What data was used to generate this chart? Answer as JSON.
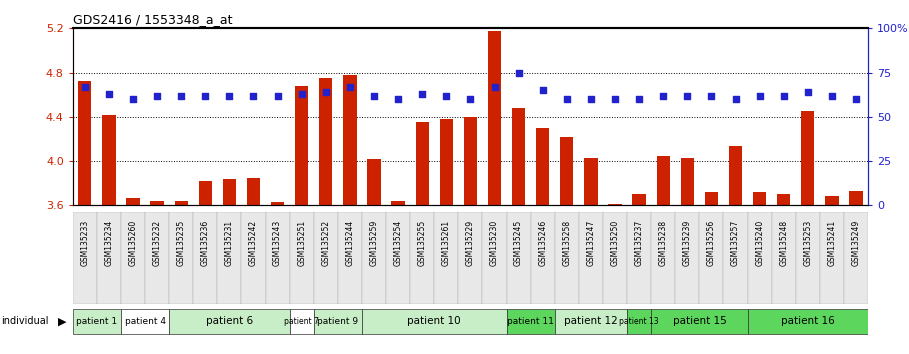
{
  "title": "GDS2416 / 1553348_a_at",
  "samples": [
    "GSM135233",
    "GSM135234",
    "GSM135260",
    "GSM135232",
    "GSM135235",
    "GSM135236",
    "GSM135231",
    "GSM135242",
    "GSM135243",
    "GSM135251",
    "GSM135252",
    "GSM135244",
    "GSM135259",
    "GSM135254",
    "GSM135255",
    "GSM135261",
    "GSM135229",
    "GSM135230",
    "GSM135245",
    "GSM135246",
    "GSM135258",
    "GSM135247",
    "GSM135250",
    "GSM135237",
    "GSM135238",
    "GSM135239",
    "GSM135256",
    "GSM135257",
    "GSM135240",
    "GSM135248",
    "GSM135253",
    "GSM135241",
    "GSM135249"
  ],
  "bar_values": [
    4.72,
    4.42,
    3.67,
    3.64,
    3.64,
    3.82,
    3.84,
    3.85,
    3.63,
    4.68,
    4.75,
    4.78,
    4.02,
    3.64,
    4.35,
    4.38,
    4.4,
    5.18,
    4.48,
    4.3,
    4.22,
    4.03,
    3.61,
    3.7,
    4.05,
    4.03,
    3.72,
    4.14,
    3.72,
    3.7,
    4.45,
    3.68,
    3.73
  ],
  "dot_values": [
    67,
    63,
    60,
    62,
    62,
    62,
    62,
    62,
    62,
    63,
    64,
    67,
    62,
    60,
    63,
    62,
    60,
    67,
    75,
    65,
    60,
    60,
    60,
    60,
    62,
    62,
    62,
    60,
    62,
    62,
    64,
    62,
    60
  ],
  "patients": [
    {
      "label": "patient 1",
      "start": 0,
      "end": 2,
      "color": "#c8eec8"
    },
    {
      "label": "patient 4",
      "start": 2,
      "end": 4,
      "color": "#ffffff"
    },
    {
      "label": "patient 6",
      "start": 4,
      "end": 9,
      "color": "#c8eec8"
    },
    {
      "label": "patient 7",
      "start": 9,
      "end": 10,
      "color": "#ffffff"
    },
    {
      "label": "patient 9",
      "start": 10,
      "end": 12,
      "color": "#c8eec8"
    },
    {
      "label": "patient 10",
      "start": 12,
      "end": 18,
      "color": "#c8eec8"
    },
    {
      "label": "patient 11",
      "start": 18,
      "end": 20,
      "color": "#5dd65d"
    },
    {
      "label": "patient 12",
      "start": 20,
      "end": 23,
      "color": "#c8eec8"
    },
    {
      "label": "patient 13",
      "start": 23,
      "end": 24,
      "color": "#5dd65d"
    },
    {
      "label": "patient 15",
      "start": 24,
      "end": 28,
      "color": "#5dd65d"
    },
    {
      "label": "patient 16",
      "start": 28,
      "end": 33,
      "color": "#5dd65d"
    }
  ],
  "y_min": 3.6,
  "y_max": 5.2,
  "y_ticks_left": [
    3.6,
    4.0,
    4.4,
    4.8,
    5.2
  ],
  "y_ticks_right_vals": [
    0,
    25,
    50,
    75,
    100
  ],
  "y_ticks_right_labels": [
    "0",
    "25",
    "50",
    "75",
    "100%"
  ],
  "bar_color": "#cc2200",
  "dot_color": "#2222cc",
  "background_color": "#ffffff"
}
